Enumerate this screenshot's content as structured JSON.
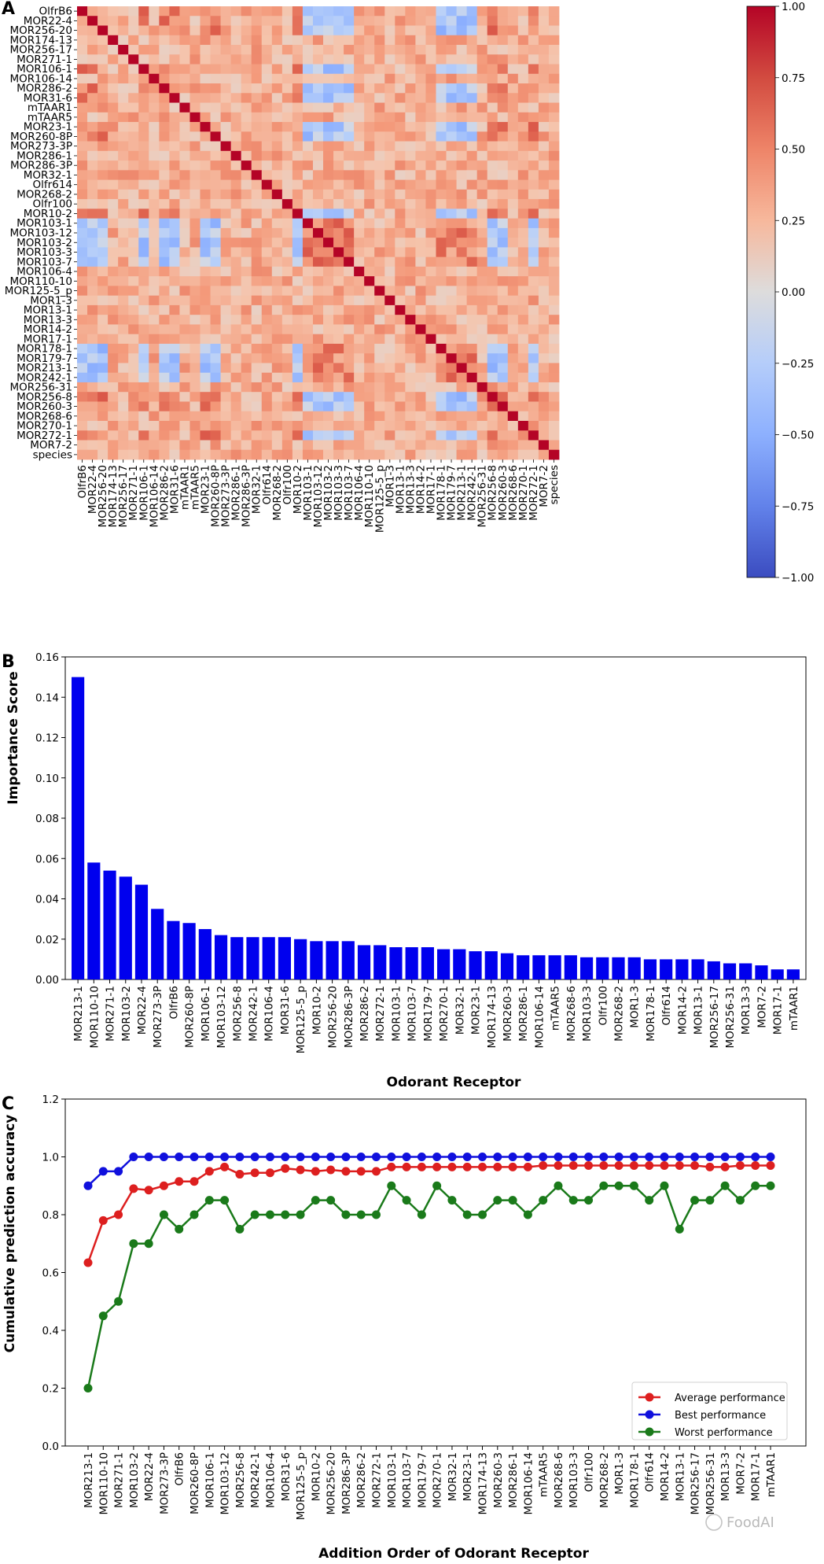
{
  "panels": {
    "a": "A",
    "b": "B",
    "c": "C"
  },
  "watermark": "FoodAI",
  "receptors_heatmap": [
    "OlfrB6",
    "MOR22-4",
    "MOR256-20",
    "MOR174-13",
    "MOR256-17",
    "MOR271-1",
    "MOR106-1",
    "MOR106-14",
    "MOR286-2",
    "MOR31-6",
    "mTAAR1",
    "mTAAR5",
    "MOR23-1",
    "MOR260-8P",
    "MOR273-3P",
    "MOR286-1",
    "MOR286-3P",
    "MOR32-1",
    "Olfr614",
    "MOR268-2",
    "Olfr100",
    "MOR10-2",
    "MOR103-1",
    "MOR103-12",
    "MOR103-2",
    "MOR103-3",
    "MOR103-7",
    "MOR106-4",
    "MOR110-10",
    "MOR125-5_p",
    "MOR1-3",
    "MOR13-1",
    "MOR13-3",
    "MOR14-2",
    "MOR17-1",
    "MOR178-1",
    "MOR179-7",
    "MOR213-1",
    "MOR242-1",
    "MOR256-31",
    "MOR256-8",
    "MOR260-3",
    "MOR268-6",
    "MOR270-1",
    "MOR272-1",
    "MOR7-2",
    "species"
  ],
  "order": [
    "MOR213-1",
    "MOR110-10",
    "MOR271-1",
    "MOR103-2",
    "MOR22-4",
    "MOR273-3P",
    "OlfrB6",
    "MOR260-8P",
    "MOR106-1",
    "MOR103-12",
    "MOR256-8",
    "MOR242-1",
    "MOR106-4",
    "MOR31-6",
    "MOR125-5_p",
    "MOR10-2",
    "MOR256-20",
    "MOR286-3P",
    "MOR286-2",
    "MOR272-1",
    "MOR103-1",
    "MOR103-7",
    "MOR179-7",
    "MOR270-1",
    "MOR32-1",
    "MOR23-1",
    "MOR174-13",
    "MOR260-3",
    "MOR286-1",
    "MOR106-14",
    "mTAAR5",
    "MOR268-6",
    "MOR103-3",
    "Olfr100",
    "MOR268-2",
    "MOR1-3",
    "MOR178-1",
    "Olfr614",
    "MOR14-2",
    "MOR13-1",
    "MOR256-17",
    "MOR256-31",
    "MOR13-3",
    "MOR7-2",
    "MOR17-1",
    "mTAAR1"
  ],
  "chart_data": [
    {
      "type": "heatmap",
      "title": "",
      "colorbar": {
        "min": -1.0,
        "max": 1.0,
        "ticks": [
          "1.00",
          "0.75",
          "0.50",
          "0.25",
          "0.00",
          "−0.25",
          "−0.50",
          "−0.75",
          "−1.00"
        ],
        "tick_values": [
          1.0,
          0.75,
          0.5,
          0.25,
          0.0,
          -0.25,
          -0.5,
          -0.75,
          -1.0
        ]
      },
      "group_a": [
        "OlfrB6",
        "MOR22-4",
        "MOR256-20",
        "MOR106-1",
        "MOR286-2",
        "MOR31-6",
        "MOR23-1",
        "MOR260-8P",
        "MOR10-2",
        "MOR256-8",
        "MOR260-3",
        "MOR272-1"
      ],
      "group_b": [
        "MOR103-1",
        "MOR103-12",
        "MOR103-2",
        "MOR103-3",
        "MOR103-7",
        "MOR179-7",
        "MOR213-1",
        "MOR242-1",
        "MOR178-1"
      ],
      "cross_value": -0.3,
      "within_value": 0.55,
      "other_value": 0.35
    },
    {
      "type": "bar",
      "ylabel": "Importance Score",
      "xlabel": "Odorant Receptor",
      "ylim": [
        0,
        0.16
      ],
      "yticks": [
        "0.00",
        "0.02",
        "0.04",
        "0.06",
        "0.08",
        "0.10",
        "0.12",
        "0.14",
        "0.16"
      ],
      "ytick_values": [
        0,
        0.02,
        0.04,
        0.06,
        0.08,
        0.1,
        0.12,
        0.14,
        0.16
      ],
      "color": "#0000ee",
      "values": [
        0.15,
        0.058,
        0.054,
        0.051,
        0.047,
        0.035,
        0.029,
        0.028,
        0.025,
        0.022,
        0.021,
        0.021,
        0.021,
        0.021,
        0.02,
        0.019,
        0.019,
        0.019,
        0.017,
        0.017,
        0.016,
        0.016,
        0.016,
        0.015,
        0.015,
        0.014,
        0.014,
        0.013,
        0.012,
        0.012,
        0.012,
        0.012,
        0.011,
        0.011,
        0.011,
        0.011,
        0.01,
        0.01,
        0.01,
        0.01,
        0.009,
        0.008,
        0.008,
        0.007,
        0.005,
        0.005
      ]
    },
    {
      "type": "line",
      "ylabel": "Cumulative prediction accuracy",
      "xlabel": "Addition Order of Odorant Receptor",
      "ylim": [
        0,
        1.2
      ],
      "yticks": [
        "0.0",
        "0.2",
        "0.4",
        "0.6",
        "0.8",
        "1.0",
        "1.2"
      ],
      "ytick_values": [
        0,
        0.2,
        0.4,
        0.6,
        0.8,
        1.0,
        1.2
      ],
      "series": [
        {
          "name": "Average performance",
          "color": "#dd1f1f",
          "values": [
            0.634,
            0.78,
            0.8,
            0.89,
            0.885,
            0.9,
            0.915,
            0.915,
            0.95,
            0.965,
            0.94,
            0.945,
            0.945,
            0.96,
            0.955,
            0.95,
            0.955,
            0.95,
            0.95,
            0.95,
            0.965,
            0.965,
            0.965,
            0.965,
            0.965,
            0.965,
            0.965,
            0.965,
            0.965,
            0.965,
            0.97,
            0.97,
            0.97,
            0.97,
            0.97,
            0.97,
            0.97,
            0.97,
            0.97,
            0.97,
            0.97,
            0.965,
            0.965,
            0.97,
            0.97,
            0.97
          ]
        },
        {
          "name": "Best performance",
          "color": "#1010dd",
          "values": [
            0.9,
            0.95,
            0.95,
            1.0,
            1.0,
            1.0,
            1.0,
            1.0,
            1.0,
            1.0,
            1.0,
            1.0,
            1.0,
            1.0,
            1.0,
            1.0,
            1.0,
            1.0,
            1.0,
            1.0,
            1.0,
            1.0,
            1.0,
            1.0,
            1.0,
            1.0,
            1.0,
            1.0,
            1.0,
            1.0,
            1.0,
            1.0,
            1.0,
            1.0,
            1.0,
            1.0,
            1.0,
            1.0,
            1.0,
            1.0,
            1.0,
            1.0,
            1.0,
            1.0,
            1.0,
            1.0
          ]
        },
        {
          "name": "Worst performance",
          "color": "#1a7a1a",
          "values": [
            0.2,
            0.45,
            0.5,
            0.7,
            0.7,
            0.8,
            0.75,
            0.8,
            0.85,
            0.85,
            0.75,
            0.8,
            0.8,
            0.8,
            0.8,
            0.85,
            0.85,
            0.8,
            0.8,
            0.8,
            0.9,
            0.85,
            0.8,
            0.9,
            0.85,
            0.8,
            0.8,
            0.85,
            0.85,
            0.8,
            0.85,
            0.9,
            0.85,
            0.85,
            0.9,
            0.9,
            0.9,
            0.85,
            0.9,
            0.75,
            0.85,
            0.85,
            0.9,
            0.85,
            0.9,
            0.9
          ]
        }
      ],
      "legend": "lower right"
    }
  ]
}
